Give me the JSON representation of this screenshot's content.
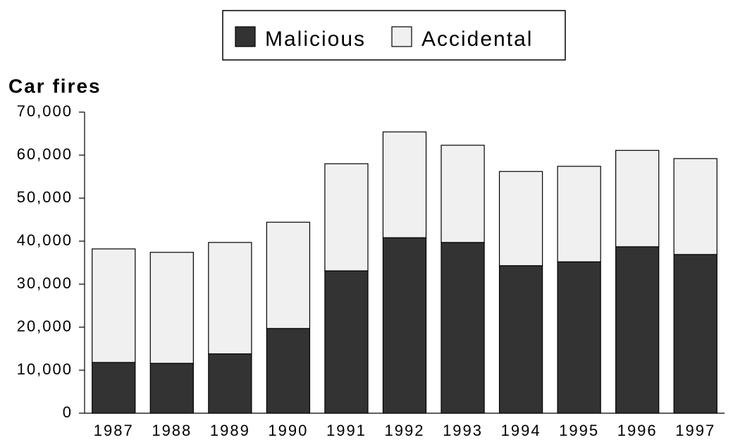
{
  "chart_data": {
    "type": "stacked_bar",
    "title": "Car fires",
    "categories": [
      "1987",
      "1988",
      "1989",
      "1990",
      "1991",
      "1992",
      "1993",
      "1994",
      "1995",
      "1996",
      "1997"
    ],
    "series": [
      {
        "name": "Malicious",
        "color": "#333333",
        "values": [
          11800,
          11600,
          13800,
          19700,
          33100,
          40800,
          39700,
          34300,
          35200,
          38700,
          36900
        ]
      },
      {
        "name": "Accidental",
        "color": "#f0f0f0",
        "values": [
          26400,
          25800,
          25900,
          24700,
          24900,
          24600,
          22600,
          21900,
          22200,
          22400,
          22300
        ]
      }
    ],
    "ylim": [
      0,
      70000
    ],
    "yticks": [
      0,
      {
        "value": 10000,
        "label": "10,000"
      },
      {
        "value": 20000,
        "label": "20,000"
      },
      {
        "value": 30000,
        "label": "30,000"
      },
      {
        "value": 40000,
        "label": "40,000"
      },
      {
        "value": 50000,
        "label": "50,000"
      },
      {
        "value": 60000,
        "label": "60,000"
      },
      {
        "value": 70000,
        "label": "70,000"
      }
    ],
    "legend": "top"
  }
}
